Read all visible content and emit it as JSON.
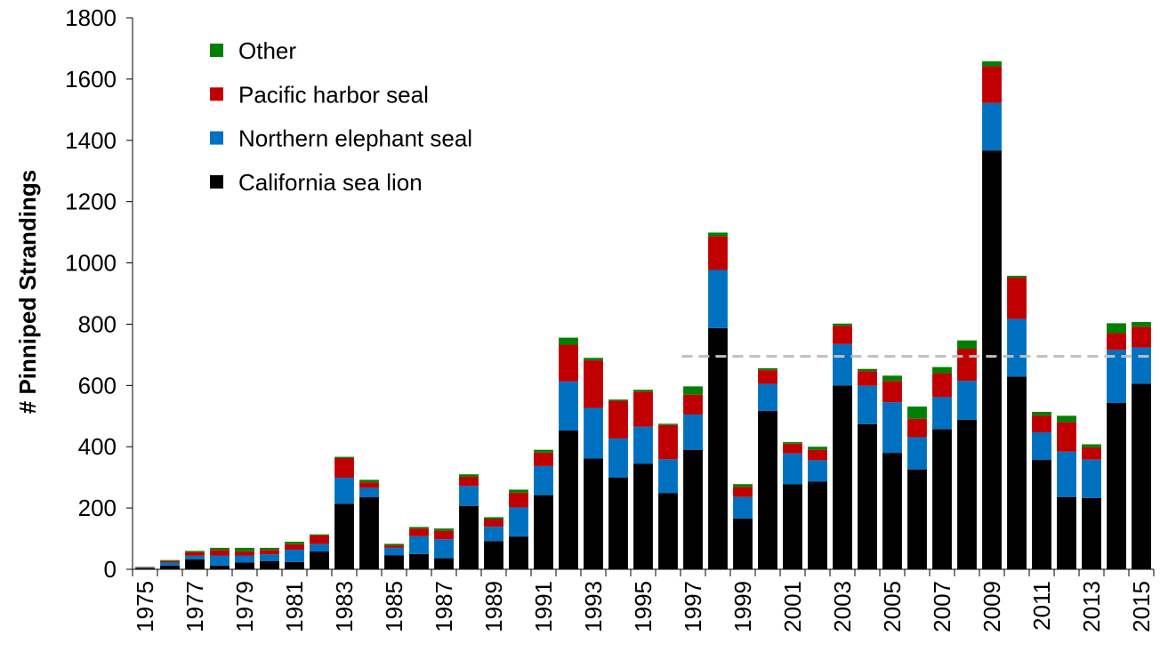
{
  "chart_data": {
    "type": "bar",
    "stacked": true,
    "title": "",
    "xlabel": "",
    "ylabel": "# Pinniped Strandings",
    "ylim": [
      0,
      1800
    ],
    "yticks": [
      0,
      200,
      400,
      600,
      800,
      1000,
      1200,
      1400,
      1600,
      1800
    ],
    "xtick_labels": [
      "1975",
      "1977",
      "1979",
      "1981",
      "1983",
      "1985",
      "1987",
      "1989",
      "1991",
      "1993",
      "1995",
      "1997",
      "1999",
      "2001",
      "2003",
      "2005",
      "2007",
      "2009",
      "2011",
      "2013",
      "2015"
    ],
    "categories": [
      "1975",
      "1976",
      "1977",
      "1978",
      "1979",
      "1980",
      "1981",
      "1982",
      "1983",
      "1984",
      "1985",
      "1986",
      "1987",
      "1988",
      "1989",
      "1990",
      "1991",
      "1992",
      "1993",
      "1994",
      "1995",
      "1996",
      "1997",
      "1998",
      "1999",
      "2000",
      "2001",
      "2002",
      "2003",
      "2004",
      "2005",
      "2006",
      "2007",
      "2008",
      "2009",
      "2010",
      "2011",
      "2012",
      "2013",
      "2014",
      "2015"
    ],
    "series": [
      {
        "name": "California sea lion",
        "color": "#000000",
        "values": [
          3,
          12,
          32,
          12,
          22,
          27,
          24,
          58,
          214,
          235,
          46,
          50,
          36,
          207,
          92,
          107,
          242,
          453,
          362,
          299,
          345,
          249,
          390,
          787,
          166,
          517,
          278,
          286,
          600,
          474,
          380,
          326,
          457,
          488,
          1367,
          629,
          357,
          236,
          233,
          543,
          606
        ]
      },
      {
        "name": "Northern elephant seal",
        "color": "#0070c0",
        "values": [
          2,
          10,
          12,
          33,
          23,
          22,
          40,
          25,
          85,
          31,
          24,
          58,
          62,
          65,
          47,
          95,
          95,
          160,
          165,
          128,
          120,
          110,
          115,
          190,
          70,
          88,
          100,
          70,
          135,
          125,
          165,
          105,
          105,
          127,
          155,
          188,
          90,
          148,
          125,
          173,
          118
        ]
      },
      {
        "name": "Pacific harbor seal",
        "color": "#c00000",
        "values": [
          2,
          5,
          12,
          18,
          14,
          14,
          18,
          28,
          64,
          18,
          8,
          25,
          28,
          30,
          25,
          48,
          44,
          120,
          155,
          123,
          115,
          112,
          65,
          110,
          33,
          45,
          32,
          34,
          60,
          48,
          70,
          60,
          78,
          105,
          120,
          135,
          55,
          97,
          40,
          55,
          68
        ]
      },
      {
        "name": "Other",
        "color": "#008000",
        "values": [
          1,
          3,
          4,
          7,
          11,
          7,
          8,
          3,
          4,
          8,
          5,
          5,
          7,
          8,
          6,
          10,
          9,
          23,
          8,
          4,
          6,
          4,
          27,
          12,
          9,
          6,
          5,
          10,
          7,
          7,
          17,
          40,
          20,
          27,
          16,
          6,
          12,
          20,
          10,
          32,
          15
        ]
      }
    ],
    "legend": {
      "position": "top-left",
      "order": [
        "Other",
        "Pacific harbor seal",
        "Northern elephant seal",
        "California sea lion"
      ]
    },
    "reference_line": {
      "y": 695,
      "x_start": "1997",
      "x_end": "2015",
      "style": "dashed",
      "color": "#bfbfbf"
    },
    "grid": false
  }
}
